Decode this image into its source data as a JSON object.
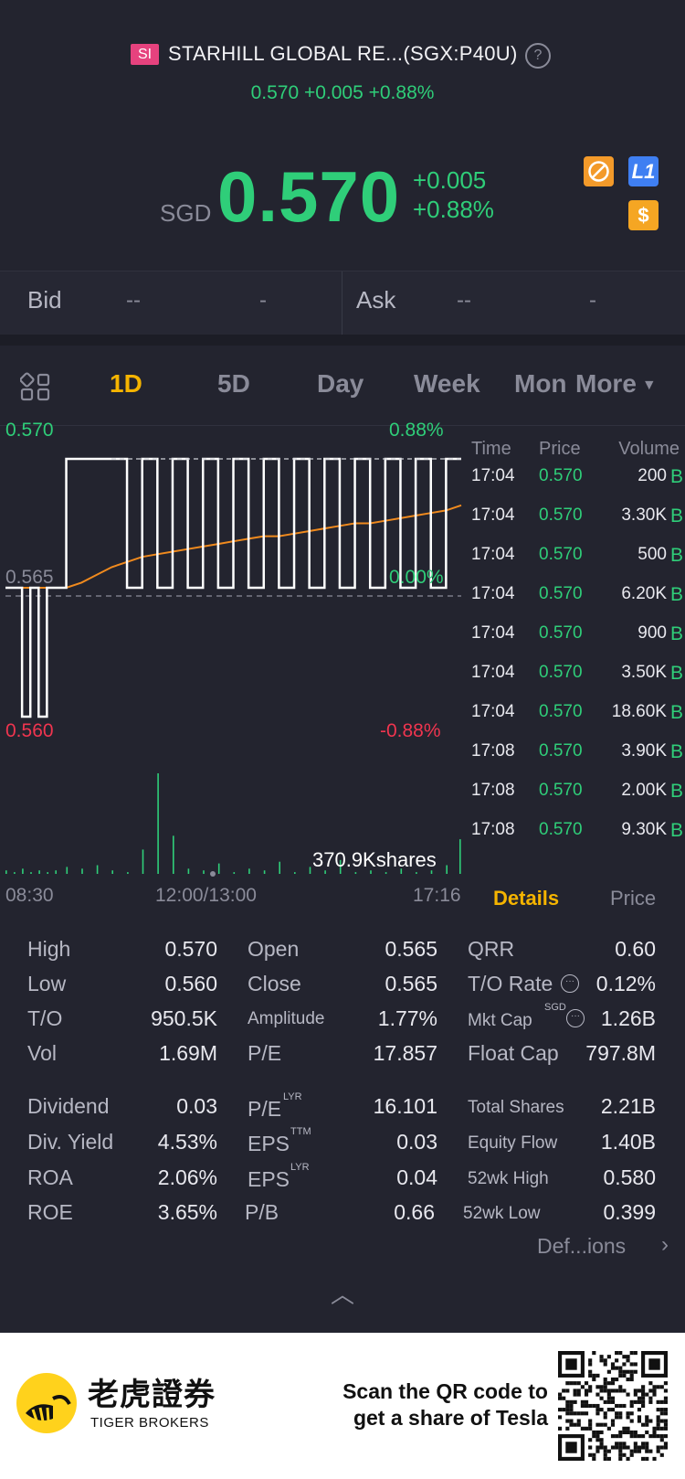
{
  "header": {
    "market_badge": "SI",
    "stock_name": "STARHILL GLOBAL RE...(SGX:P40U)",
    "help_icon": "question-circle-icon",
    "small_quote": "0.570 +0.005 +0.88%",
    "currency": "SGD",
    "price": "0.570",
    "change": "+0.005",
    "change_pct": "+0.88%",
    "badges": [
      "fx-icon",
      "level1-icon",
      "dollar-icon"
    ],
    "badge_l1": "L1",
    "badge_usd": "$"
  },
  "bid_ask": {
    "bid_label": "Bid",
    "bid_price": "--",
    "bid_size": "-",
    "ask_label": "Ask",
    "ask_price": "--",
    "ask_size": "-"
  },
  "tabs": [
    "1D",
    "5D",
    "Day",
    "Week",
    "Mon",
    "More"
  ],
  "active_tab": "1D",
  "chart_data": {
    "type": "line",
    "y_top_label": "0.570",
    "y_mid_label": "0.565",
    "y_bottom_label": "0.560",
    "pct_top_label": "0.88%",
    "pct_mid_label": "0.00%",
    "pct_bottom_label": "-0.88%",
    "ylim": [
      0.56,
      0.57
    ],
    "x_labels": [
      "08:30",
      "12:00/13:00",
      "17:16"
    ],
    "volume_label": "370.9Kshares",
    "colors": {
      "price": "#ffffff",
      "avg": "#f08a1e",
      "volume": "#2fce79",
      "up": "#2fce79",
      "down": "#f0354f"
    },
    "series": [
      {
        "values": [
          0.565,
          0.565,
          0.56,
          0.565,
          0.56,
          0.565,
          0.565,
          0.57,
          0.57,
          0.57,
          0.57,
          0.565,
          0.57,
          0.565,
          0.57,
          0.565,
          0.57,
          0.565,
          0.57,
          0.565,
          0.57,
          0.565,
          0.57,
          0.565,
          0.57,
          0.565,
          0.57,
          0.565,
          0.57,
          0.565,
          0.57,
          0.565,
          0.57,
          0.57
        ]
      },
      {
        "values": [
          0.565,
          0.565,
          0.565,
          0.565,
          0.565,
          0.565,
          0.565,
          0.565,
          0.5652,
          0.5655,
          0.5658,
          0.566,
          0.5662,
          0.5663,
          0.5664,
          0.5665,
          0.5666,
          0.5667,
          0.5668,
          0.5669,
          0.567,
          0.567,
          0.5671,
          0.5672,
          0.5673,
          0.5674,
          0.5675,
          0.5675,
          0.5676,
          0.5677,
          0.5678,
          0.5679,
          0.568,
          0.5682
        ]
      }
    ],
    "volume": [
      2,
      1,
      3,
      1,
      2,
      1,
      2,
      4,
      3,
      5,
      2,
      1,
      14,
      58,
      22,
      3,
      2,
      6,
      1,
      3,
      2,
      7,
      1,
      4,
      2,
      8,
      1,
      2,
      1,
      3,
      1,
      2,
      5,
      20
    ]
  },
  "ticks": {
    "headers": [
      "Time",
      "Price",
      "Volume"
    ],
    "rows": [
      {
        "time": "17:04",
        "price": "0.570",
        "volume": "200",
        "side": "B"
      },
      {
        "time": "17:04",
        "price": "0.570",
        "volume": "3.30K",
        "side": "B"
      },
      {
        "time": "17:04",
        "price": "0.570",
        "volume": "500",
        "side": "B"
      },
      {
        "time": "17:04",
        "price": "0.570",
        "volume": "6.20K",
        "side": "B"
      },
      {
        "time": "17:04",
        "price": "0.570",
        "volume": "900",
        "side": "B"
      },
      {
        "time": "17:04",
        "price": "0.570",
        "volume": "3.50K",
        "side": "B"
      },
      {
        "time": "17:04",
        "price": "0.570",
        "volume": "18.60K",
        "side": "B"
      },
      {
        "time": "17:08",
        "price": "0.570",
        "volume": "3.90K",
        "side": "B"
      },
      {
        "time": "17:08",
        "price": "0.570",
        "volume": "2.00K",
        "side": "B"
      },
      {
        "time": "17:08",
        "price": "0.570",
        "volume": "9.30K",
        "side": "B"
      }
    ]
  },
  "detail_tabs": {
    "details": "Details",
    "price": "Price"
  },
  "stats": {
    "high_l": "High",
    "high_v": "0.570",
    "low_l": "Low",
    "low_v": "0.560",
    "to_l": "T/O",
    "to_v": "950.5K",
    "vol_l": "Vol",
    "vol_v": "1.69M",
    "open_l": "Open",
    "open_v": "0.565",
    "close_l": "Close",
    "close_v": "0.565",
    "amp_l": "Amplitude",
    "amp_v": "1.77%",
    "pe_l": "P/E",
    "pe_v": "17.857",
    "qrr_l": "QRR",
    "qrr_v": "0.60",
    "tor_l": "T/O Rate",
    "tor_v": "0.12%",
    "mcap_l": "Mkt Cap",
    "mcap_sup": "SGD",
    "mcap_v": "1.26B",
    "fcap_l": "Float Cap",
    "fcap_v": "797.8M",
    "div_l": "Dividend",
    "div_v": "0.03",
    "dy_l": "Div. Yield",
    "dy_v": "4.53%",
    "roa_l": "ROA",
    "roa_v": "2.06%",
    "roe_l": "ROE",
    "roe_v": "3.65%",
    "pel_l": "P/E",
    "pel_sup": "LYR",
    "pel_v": "16.101",
    "epst_l": "EPS",
    "epst_sup": "TTM",
    "epst_v": "0.03",
    "epsl_l": "EPS",
    "epsl_sup": "LYR",
    "epsl_v": "0.04",
    "pb_l": "P/B",
    "pb_v": "0.66",
    "ts_l": "Total Shares",
    "ts_v": "2.21B",
    "ef_l": "Equity Flow",
    "ef_v": "1.40B",
    "wh_l": "52wk High",
    "wh_v": "0.580",
    "wl_l": "52wk Low",
    "wl_v": "0.399"
  },
  "definitions_link": "Def...ions",
  "collapse_icon": "chevron-up-icon",
  "footer": {
    "brand_cn": "老虎證券",
    "brand_en": "TIGER BROKERS",
    "scan_line1": "Scan the QR code to",
    "scan_line2": "get a share of Tesla"
  }
}
